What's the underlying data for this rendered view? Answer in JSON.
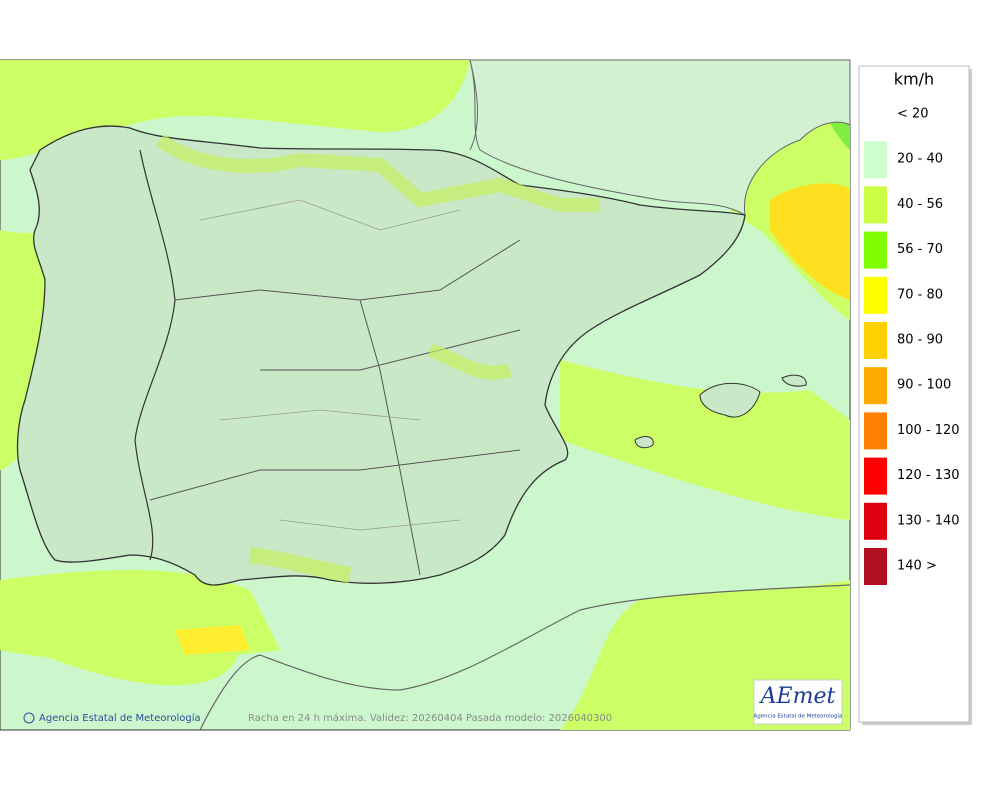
{
  "legend": {
    "unit": "km/h",
    "items": [
      {
        "label": "< 20"
      },
      {
        "label": "20 - 40",
        "color": "#ccffcc"
      },
      {
        "label": "40 - 56",
        "color": "#ccff44"
      },
      {
        "label": "56 - 70",
        "color": "#80ff00"
      },
      {
        "label": "70 - 80",
        "color": "#ffff00"
      },
      {
        "label": "80 - 90",
        "color": "#ffd000"
      },
      {
        "label": "90 - 100",
        "color": "#ffaa00"
      },
      {
        "label": "100 - 120",
        "color": "#ff8000"
      },
      {
        "label": "120 - 130",
        "color": "#ff0000"
      },
      {
        "label": "130 - 140",
        "color": "#dd0010"
      },
      {
        "label": "140 >",
        "color": "#b01020"
      }
    ]
  },
  "footer": {
    "credit": "Agencia Estatal de Meteorología",
    "caption": "Racha en 24 h máxima. Validez: 20260404 Pasada modelo: 2026040300"
  },
  "logo": {
    "name": "AEmet",
    "subtitle": "Agencia Estatal de Meteorología"
  }
}
